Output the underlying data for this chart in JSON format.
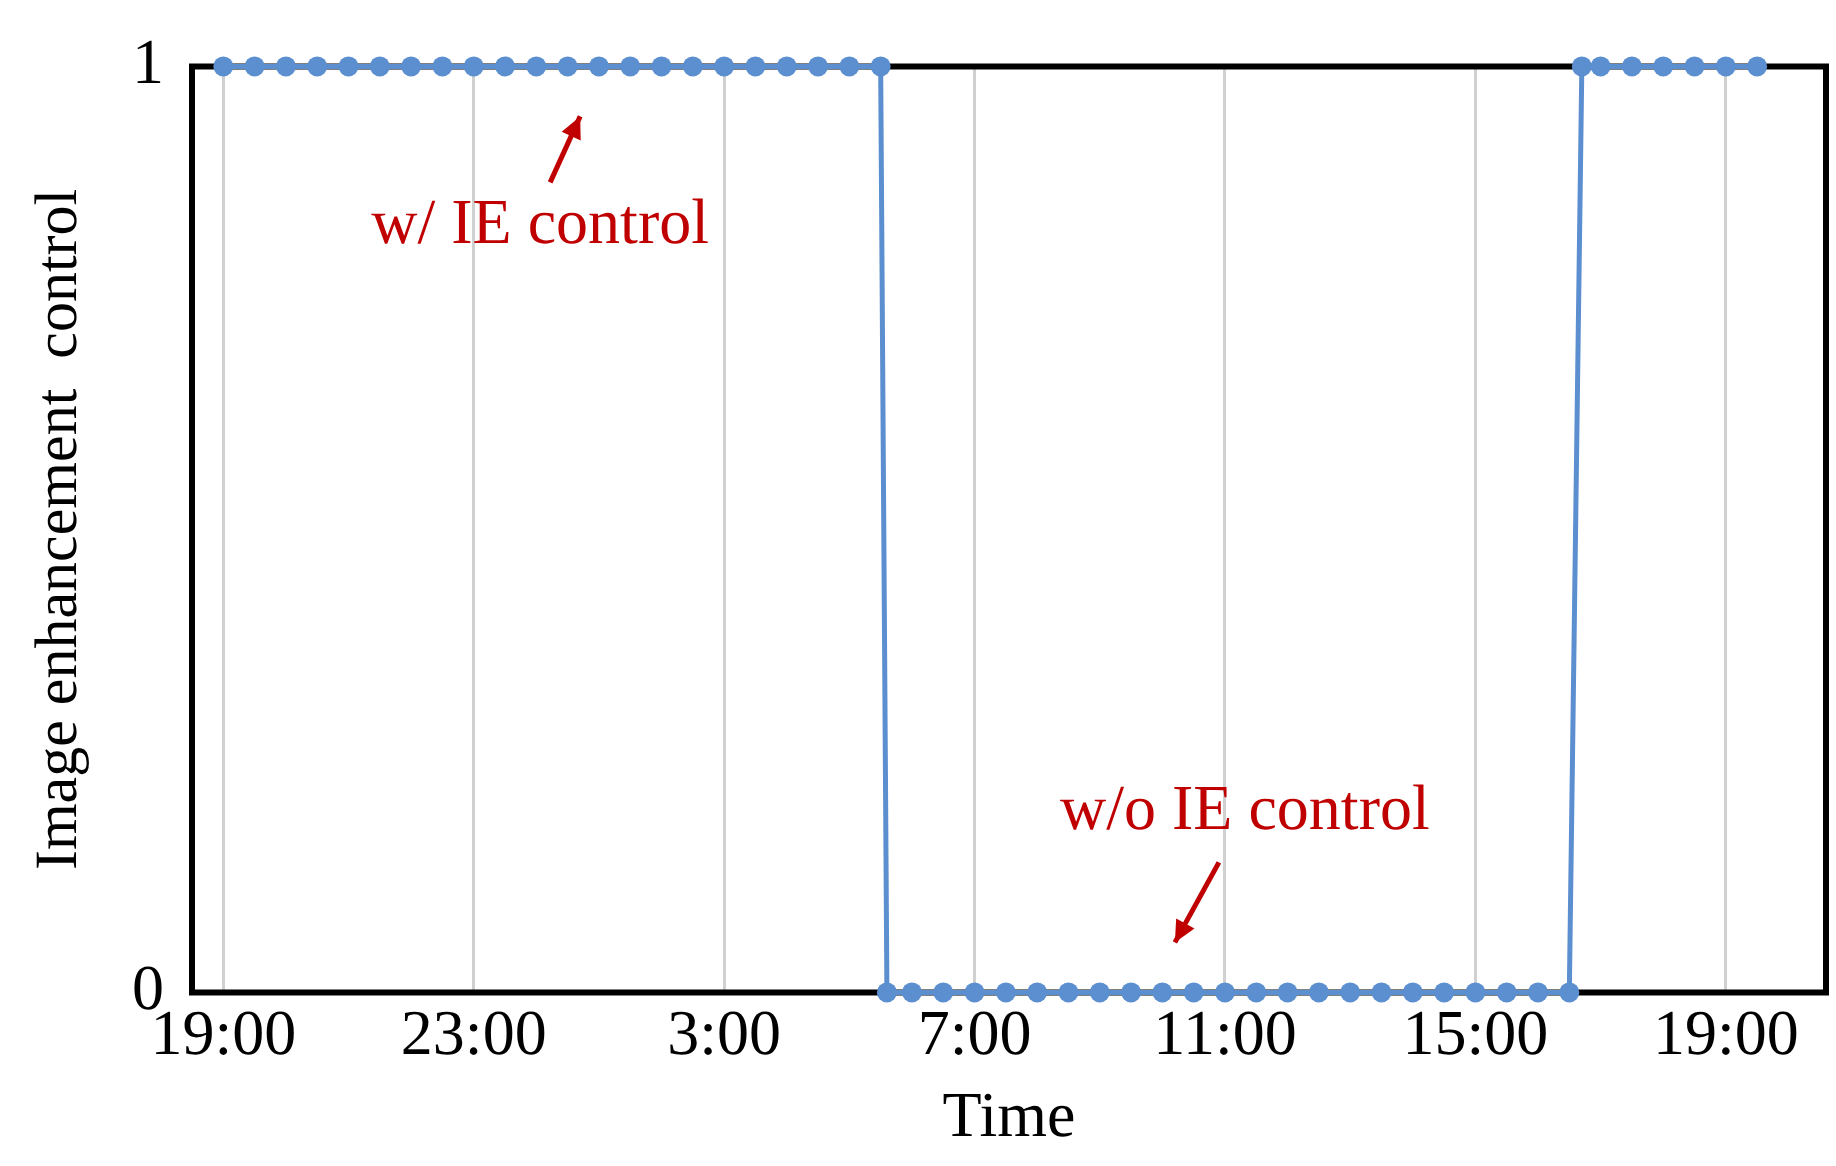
{
  "chart_data": {
    "type": "line",
    "xlabel": "Time",
    "ylabel": "Image enhancement  control",
    "series": [
      {
        "color": "#5b8fcf",
        "x": [
          "--01-01T19:00",
          "--01-01T19:30",
          "--01-01T20:00",
          "--01-01T20:30",
          "--01-01T21:00",
          "--01-01T21:30",
          "--01-01T22:00",
          "--01-01T22:30",
          "--01-01T23:00",
          "--01-01T23:30",
          "--01-02T00:00",
          "--01-02T00:30",
          "--01-02T01:00",
          "--01-02T01:30",
          "--01-02T02:00",
          "--01-02T02:30",
          "--01-02T03:00",
          "--01-02T03:30",
          "--01-02T04:00",
          "--01-02T04:30",
          "--01-02T05:00",
          "--01-02T05:30",
          "--01-02T05:36",
          "--01-02T06:00",
          "--01-02T06:30",
          "--01-02T07:00",
          "--01-02T07:30",
          "--01-02T08:00",
          "--01-02T08:30",
          "--01-02T09:00",
          "--01-02T09:30",
          "--01-02T10:00",
          "--01-02T10:30",
          "--01-02T11:00",
          "--01-02T11:30",
          "--01-02T12:00",
          "--01-02T12:30",
          "--01-02T13:00",
          "--01-02T13:30",
          "--01-02T14:00",
          "--01-02T14:30",
          "--01-02T15:00",
          "--01-02T15:30",
          "--01-02T16:00",
          "--01-02T16:30",
          "--01-02T16:42",
          "--01-02T17:00",
          "--01-02T17:30",
          "--01-02T18:00",
          "--01-02T18:30",
          "--01-02T19:00",
          "--01-02T19:30"
        ],
        "values": [
          1,
          1,
          1,
          1,
          1,
          1,
          1,
          1,
          1,
          1,
          1,
          1,
          1,
          1,
          1,
          1,
          1,
          1,
          1,
          1,
          1,
          1,
          0,
          0,
          0,
          0,
          0,
          0,
          0,
          0,
          0,
          0,
          0,
          0,
          0,
          0,
          0,
          0,
          0,
          0,
          0,
          0,
          0,
          0,
          0,
          1,
          1,
          1,
          1,
          1,
          1,
          1
        ]
      }
    ],
    "xlim": [
      "--01-01T18:30",
      "--01-02T20:36"
    ],
    "ylim": [
      0,
      1
    ],
    "yticks": [
      0,
      1
    ],
    "xticks": [
      {
        "value": "--01-01T19:00",
        "label": "19:00"
      },
      {
        "value": "--01-01T23:00",
        "label": "23:00"
      },
      {
        "value": "--01-02T03:00",
        "label": "3:00"
      },
      {
        "value": "--01-02T07:00",
        "label": "7:00"
      },
      {
        "value": "--01-02T11:00",
        "label": "11:00"
      },
      {
        "value": "--01-02T15:00",
        "label": "15:00"
      },
      {
        "value": "--01-02T19:00",
        "label": "19:00"
      }
    ],
    "grid": "x",
    "marker": "circle",
    "line_style": "solid",
    "legend": false,
    "annotations": [
      {
        "text": "w/ IE control",
        "x": "--01-02T00:42",
        "y": 1
      },
      {
        "text": "w/o IE control",
        "x": "--01-02T10:12",
        "y": 0
      }
    ]
  }
}
